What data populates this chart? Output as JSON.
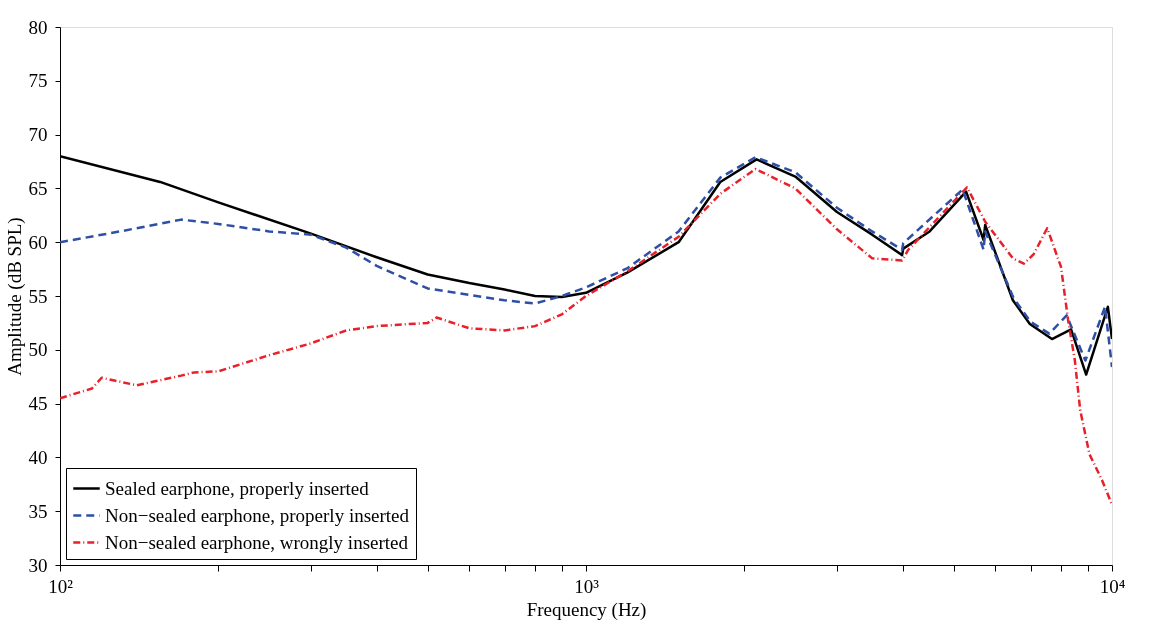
{
  "chart_data": {
    "type": "line",
    "xlabel": "Frequency (Hz)",
    "ylabel": "Amplitude (dB SPL)",
    "log": "x",
    "xlim": [
      100,
      10000
    ],
    "ylim": [
      30,
      80
    ],
    "xticks": [
      {
        "value": 100,
        "label": "10²"
      },
      {
        "value": 200,
        "label": null
      },
      {
        "value": 300,
        "label": null
      },
      {
        "value": 400,
        "label": null
      },
      {
        "value": 500,
        "label": null
      },
      {
        "value": 600,
        "label": null
      },
      {
        "value": 700,
        "label": null
      },
      {
        "value": 800,
        "label": null
      },
      {
        "value": 900,
        "label": null
      },
      {
        "value": 1000,
        "label": "10³"
      },
      {
        "value": 2000,
        "label": null
      },
      {
        "value": 3000,
        "label": null
      },
      {
        "value": 4000,
        "label": null
      },
      {
        "value": 5000,
        "label": null
      },
      {
        "value": 6000,
        "label": null
      },
      {
        "value": 7000,
        "label": null
      },
      {
        "value": 8000,
        "label": null
      },
      {
        "value": 9000,
        "label": null
      },
      {
        "value": 10000,
        "label": "10⁴"
      }
    ],
    "yticks": [
      30,
      35,
      40,
      45,
      50,
      55,
      60,
      65,
      70,
      75,
      80
    ],
    "grid": false,
    "legend": "bottom left",
    "series": [
      {
        "name": "Sealed earphone, properly inserted",
        "color": "#000000",
        "line_style": "solid",
        "x": [
          100,
          155,
          200,
          300,
          400,
          500,
          600,
          700,
          800,
          900,
          1000,
          1200,
          1500,
          1800,
          2110,
          2500,
          3000,
          3500,
          3990,
          4010,
          4500,
          5280,
          5700,
          5740,
          6480,
          6980,
          7690,
          8360,
          8930,
          9820,
          10000
        ],
        "values": [
          68.0,
          65.6,
          63.7,
          60.8,
          58.6,
          57.0,
          56.2,
          55.6,
          55.0,
          54.9,
          55.3,
          57.2,
          60.0,
          65.6,
          67.7,
          66.1,
          62.8,
          60.7,
          58.8,
          59.4,
          61.0,
          64.7,
          60.2,
          61.6,
          54.6,
          52.4,
          51.0,
          51.9,
          47.7,
          54.0,
          51.0
        ]
      },
      {
        "name": "Non−sealed earphone, properly inserted",
        "color": "#2e4fa5",
        "line_style": "dashed",
        "x": [
          100,
          130,
          170,
          200,
          250,
          300,
          350,
          400,
          500,
          600,
          700,
          800,
          900,
          1000,
          1200,
          1500,
          1800,
          2100,
          2500,
          3000,
          3500,
          3990,
          4010,
          5200,
          5700,
          5740,
          6500,
          7000,
          7600,
          8200,
          8900,
          9700,
          10000
        ],
        "values": [
          60.0,
          61.0,
          62.1,
          61.7,
          61.0,
          60.7,
          59.5,
          57.8,
          55.7,
          55.1,
          54.6,
          54.3,
          55.0,
          55.8,
          57.6,
          61.0,
          66.0,
          67.9,
          66.5,
          63.2,
          61.0,
          59.3,
          59.9,
          64.9,
          59.3,
          61.0,
          54.8,
          52.6,
          51.5,
          53.2,
          49.0,
          54.0,
          48.4
        ]
      },
      {
        "name": "Non−sealed earphone, wrongly inserted",
        "color": "#e8202a",
        "line_style": "dotted",
        "x": [
          100,
          115,
          120,
          140,
          170,
          180,
          200,
          250,
          300,
          350,
          400,
          500,
          520,
          600,
          700,
          800,
          900,
          1000,
          1200,
          1500,
          1800,
          2100,
          2500,
          3000,
          3500,
          3990,
          4100,
          5300,
          5740,
          6480,
          6800,
          7100,
          7530,
          8000,
          8250,
          8500,
          8700,
          9060,
          9570,
          10000
        ],
        "values": [
          45.5,
          46.4,
          47.4,
          46.7,
          47.6,
          47.9,
          48.0,
          49.5,
          50.6,
          51.8,
          52.2,
          52.5,
          53.0,
          52.0,
          51.8,
          52.2,
          53.3,
          55.0,
          57.3,
          60.5,
          64.5,
          66.8,
          65.0,
          61.2,
          58.5,
          58.3,
          59.3,
          65.1,
          61.9,
          58.5,
          58.0,
          58.9,
          61.3,
          57.7,
          52.8,
          49.0,
          44.4,
          40.3,
          37.9,
          35.6
        ]
      }
    ]
  }
}
